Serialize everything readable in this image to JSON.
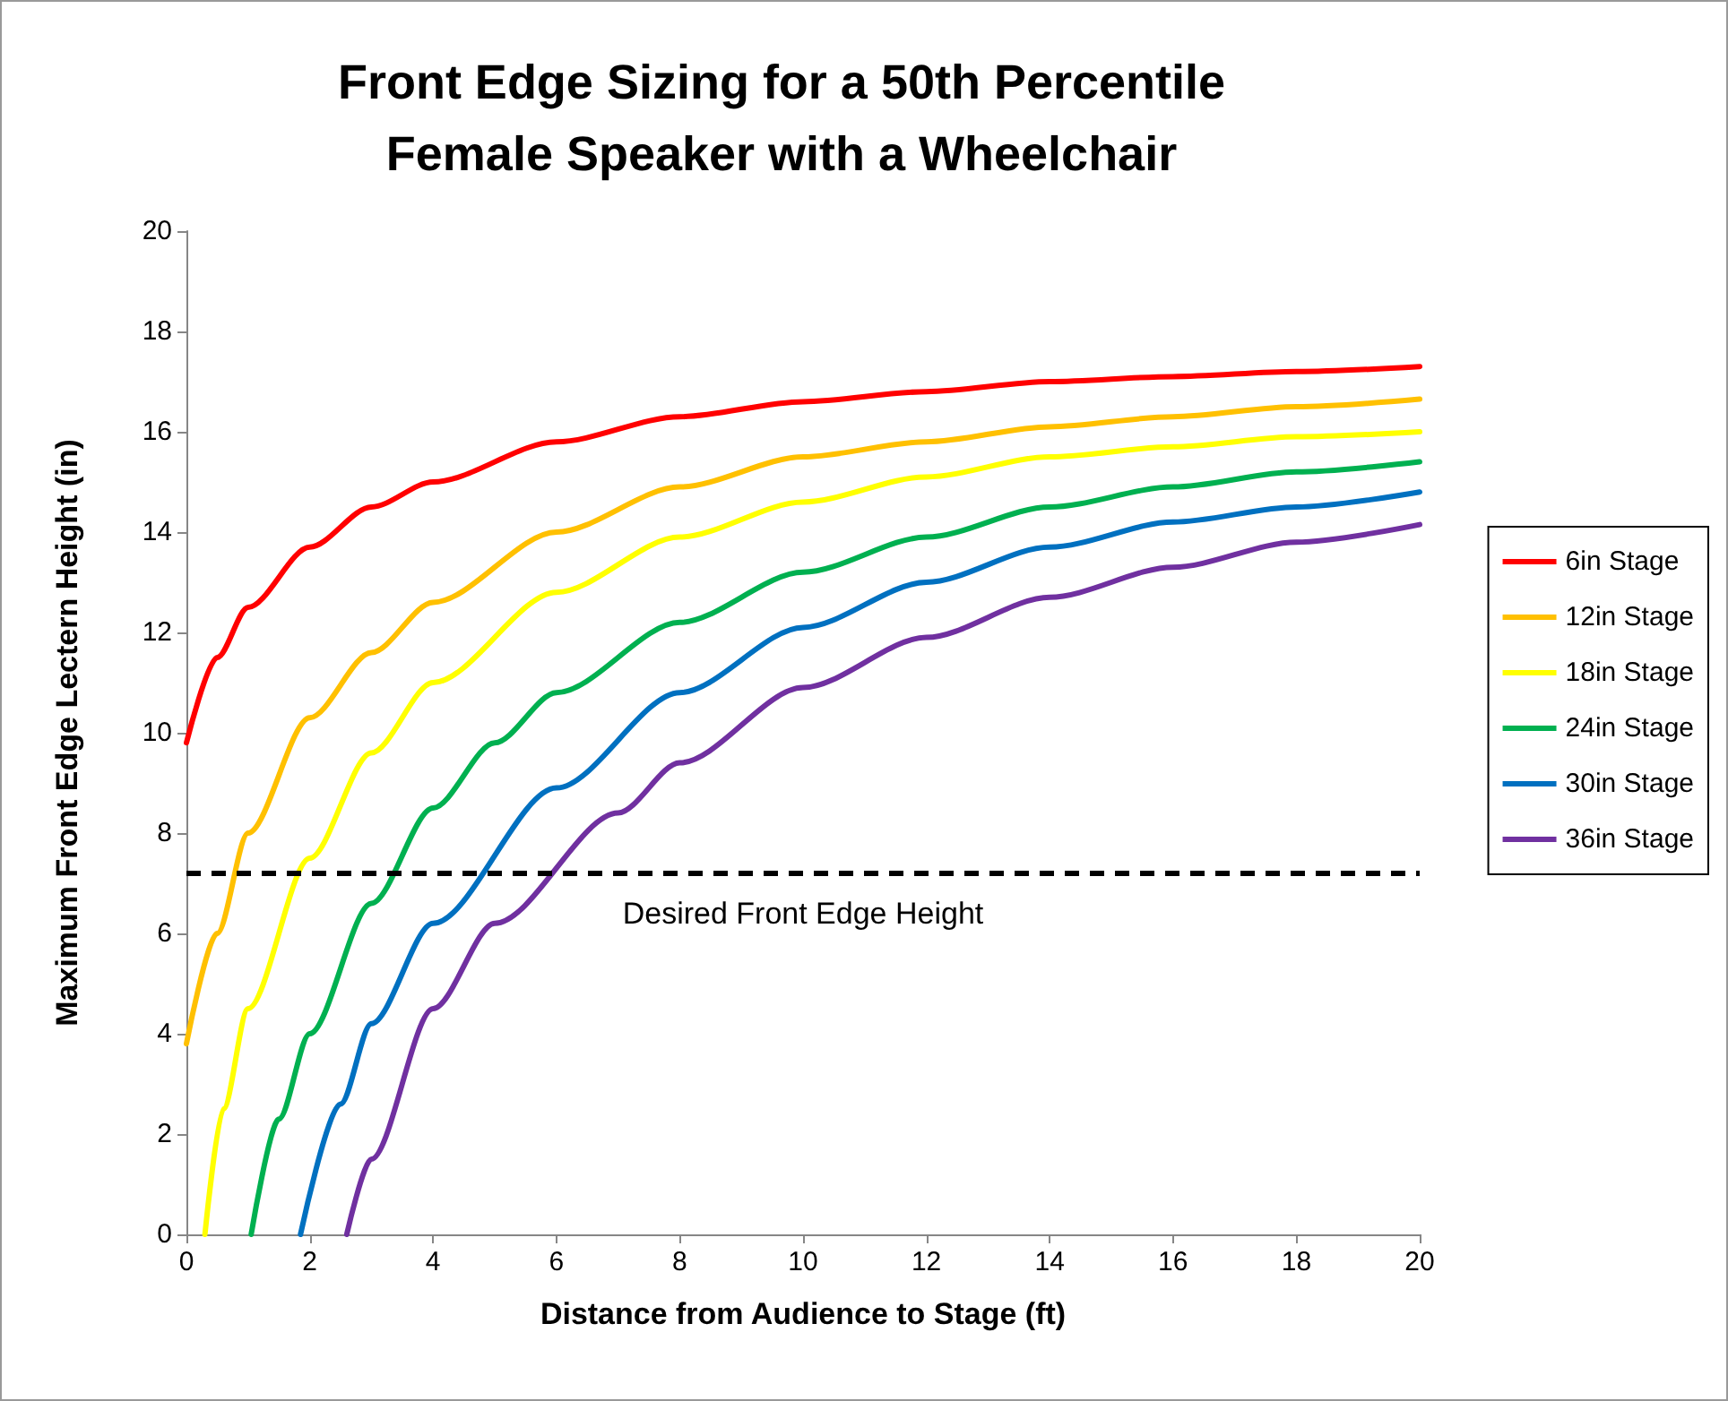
{
  "chart_data": {
    "type": "line",
    "title": "Front Edge Sizing for a 50th Percentile\nFemale Speaker with a Wheelchair",
    "xlabel": "Distance from Audience to Stage (ft)",
    "ylabel": "Maximum Front Edge Lectern Height (in)",
    "xlim": [
      0,
      20
    ],
    "xticks": [
      0,
      2,
      4,
      6,
      8,
      10,
      12,
      14,
      16,
      18,
      20
    ],
    "ylim": [
      0,
      20
    ],
    "yticks": [
      0,
      2,
      4,
      6,
      8,
      10,
      12,
      14,
      16,
      18,
      20
    ],
    "grid": false,
    "legend": "right",
    "marker": "none",
    "line_style": "solid",
    "series": [
      {
        "name": "6in Stage",
        "color": "#ff0000",
        "x": [
          0,
          0.5,
          1,
          2,
          3,
          4,
          6,
          8,
          10,
          12,
          14,
          16,
          18,
          20
        ],
        "values": [
          9.8,
          11.5,
          12.5,
          13.7,
          14.5,
          15.0,
          15.8,
          16.3,
          16.6,
          16.8,
          17.0,
          17.1,
          17.2,
          17.3
        ]
      },
      {
        "name": "12in Stage",
        "color": "#ffc000",
        "x": [
          0,
          0.5,
          1,
          2,
          3,
          4,
          6,
          8,
          10,
          12,
          14,
          16,
          18,
          20
        ],
        "values": [
          3.8,
          6.0,
          8.0,
          10.3,
          11.6,
          12.6,
          14.0,
          14.9,
          15.5,
          15.8,
          16.1,
          16.3,
          16.5,
          16.65
        ]
      },
      {
        "name": "18in Stage",
        "color": "#ffff00",
        "x": [
          0.3,
          0.6,
          1,
          2,
          3,
          4,
          6,
          8,
          10,
          12,
          14,
          16,
          18,
          20
        ],
        "values": [
          0,
          2.5,
          4.5,
          7.5,
          9.6,
          11.0,
          12.8,
          13.9,
          14.6,
          15.1,
          15.5,
          15.7,
          15.9,
          16.0
        ]
      },
      {
        "name": "24in Stage",
        "color": "#00b050",
        "x": [
          1.05,
          1.5,
          2,
          3,
          4,
          5,
          6,
          8,
          10,
          12,
          14,
          16,
          18,
          20
        ],
        "values": [
          0,
          2.3,
          4.0,
          6.6,
          8.5,
          9.8,
          10.8,
          12.2,
          13.2,
          13.9,
          14.5,
          14.9,
          15.2,
          15.4
        ]
      },
      {
        "name": "30in Stage",
        "color": "#0070c0",
        "x": [
          1.85,
          2.5,
          3,
          4,
          6,
          8,
          10,
          12,
          14,
          16,
          18,
          20
        ],
        "values": [
          0,
          2.6,
          4.2,
          6.2,
          8.9,
          10.8,
          12.1,
          13.0,
          13.7,
          14.2,
          14.5,
          14.8
        ]
      },
      {
        "name": "36in Stage",
        "color": "#7030a0",
        "x": [
          2.6,
          3,
          4,
          5,
          7,
          8,
          10,
          12,
          14,
          16,
          18,
          20
        ],
        "values": [
          0,
          1.5,
          4.5,
          6.2,
          8.4,
          9.4,
          10.9,
          11.9,
          12.7,
          13.3,
          13.8,
          14.15
        ]
      }
    ],
    "ref_lines": [
      {
        "axis": "y",
        "value": 7.2,
        "label": "Desired Front Edge Height",
        "color": "#000000",
        "line_style": "dashed"
      }
    ]
  }
}
